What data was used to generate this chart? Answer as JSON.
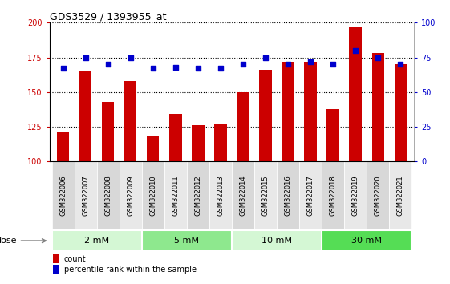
{
  "title": "GDS3529 / 1393955_at",
  "categories": [
    "GSM322006",
    "GSM322007",
    "GSM322008",
    "GSM322009",
    "GSM322010",
    "GSM322011",
    "GSM322012",
    "GSM322013",
    "GSM322014",
    "GSM322015",
    "GSM322016",
    "GSM322017",
    "GSM322018",
    "GSM322019",
    "GSM322020",
    "GSM322021"
  ],
  "bar_values": [
    121,
    165,
    143,
    158,
    118,
    134,
    126,
    127,
    150,
    166,
    172,
    172,
    138,
    197,
    178,
    170
  ],
  "bar_color": "#cc0000",
  "percentile_values": [
    67,
    75,
    70,
    75,
    67,
    68,
    67,
    67,
    70,
    75,
    70,
    72,
    70,
    80,
    75,
    70
  ],
  "percentile_color": "#0000cc",
  "ylim_left": [
    100,
    200
  ],
  "ylim_right": [
    0,
    100
  ],
  "yticks_left": [
    100,
    125,
    150,
    175,
    200
  ],
  "yticks_right": [
    0,
    25,
    50,
    75,
    100
  ],
  "dose_groups": [
    {
      "label": "2 mM",
      "start": 0,
      "end": 4,
      "color": "#d4f7d4"
    },
    {
      "label": "5 mM",
      "start": 4,
      "end": 8,
      "color": "#8ee88e"
    },
    {
      "label": "10 mM",
      "start": 8,
      "end": 12,
      "color": "#d4f7d4"
    },
    {
      "label": "30 mM",
      "start": 12,
      "end": 16,
      "color": "#55dd55"
    }
  ],
  "dose_label": "dose",
  "legend_count_label": "count",
  "legend_percentile_label": "percentile rank within the sample",
  "plot_bg_color": "#ffffff",
  "xtick_bg_even": "#d8d8d8",
  "xtick_bg_odd": "#e8e8e8",
  "grid_color": "#000000",
  "bar_width": 0.55
}
